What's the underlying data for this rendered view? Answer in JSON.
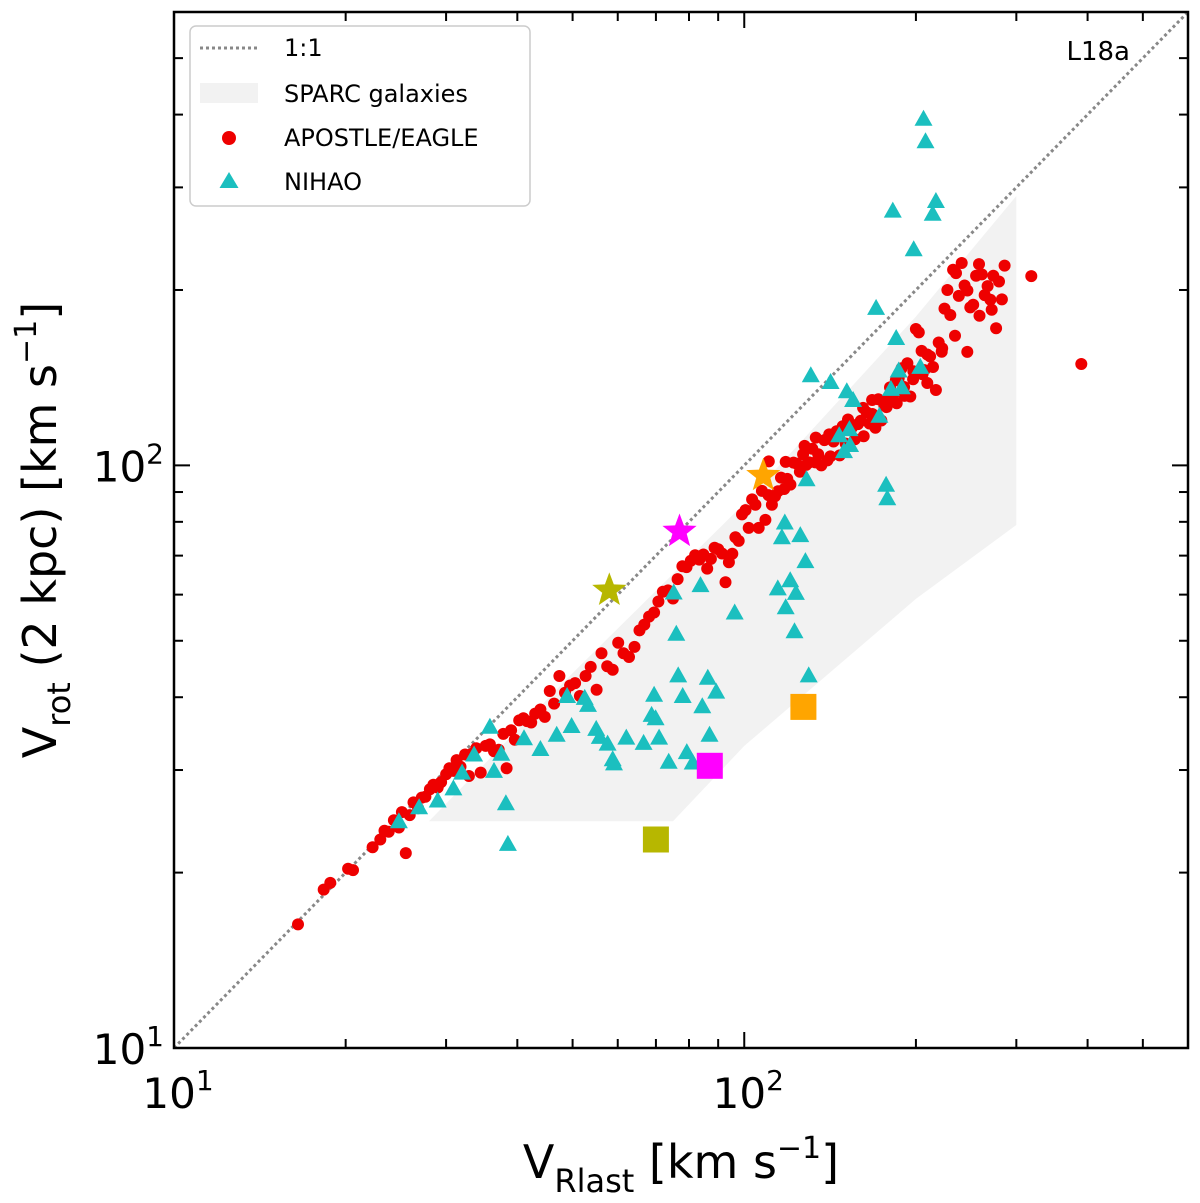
{
  "chart_data": {
    "type": "scatter",
    "xscale": "log",
    "yscale": "log",
    "xlim": [
      10,
      600
    ],
    "ylim": [
      10,
      600
    ],
    "grid": false,
    "legend_placement": "top-left",
    "annotation": "L18a",
    "xlabel": {
      "main": "V",
      "sub": "Rlast",
      "unit_pre": " [km s",
      "unit_sup": "−1",
      "unit_post": "]"
    },
    "ylabel": {
      "main": "V",
      "sub": "rot",
      "unit_pre": " (2 kpc) [km s",
      "unit_sup": "−1",
      "unit_post": "]"
    },
    "xticks": [
      {
        "value": 10,
        "base": "10",
        "exp": "1"
      },
      {
        "value": 100,
        "base": "10",
        "exp": "2"
      }
    ],
    "yticks": [
      {
        "value": 10,
        "base": "10",
        "exp": "1"
      },
      {
        "value": 100,
        "base": "10",
        "exp": "2"
      }
    ],
    "legend": [
      {
        "label": "1:1",
        "kind": "line"
      },
      {
        "label": "SPARC galaxies",
        "kind": "band"
      },
      {
        "label": "APOSTLE/EAGLE",
        "kind": "circle"
      },
      {
        "label": "NIHAO",
        "kind": "triangle"
      }
    ],
    "colors": {
      "one_to_one": "#888888",
      "sparc_band": "#f2f2f2",
      "apostle": "#ee0000",
      "nihao": "#1bbfbf",
      "olive": "#b7b700",
      "magenta": "#ff00ff",
      "orange": "#ffa500"
    },
    "one_to_one_line": [
      [
        10,
        10
      ],
      [
        600,
        600
      ]
    ],
    "sparc_band": [
      [
        28,
        24.5
      ],
      [
        50,
        44
      ],
      [
        100,
        86
      ],
      [
        200,
        180
      ],
      [
        300,
        290
      ],
      [
        300,
        79
      ],
      [
        200,
        59
      ],
      [
        100,
        33
      ],
      [
        75,
        24.5
      ]
    ],
    "series": [
      {
        "name": "APOSTLE/EAGLE",
        "marker": "circle",
        "points": [
          [
            16.5,
            16.3
          ],
          [
            18.3,
            18.7
          ],
          [
            18.8,
            19.2
          ],
          [
            20.2,
            20.3
          ],
          [
            20.6,
            20.2
          ],
          [
            22.3,
            22.1
          ],
          [
            23.0,
            22.8
          ],
          [
            23.4,
            23.6
          ],
          [
            23.8,
            23.5
          ],
          [
            24.3,
            24.6
          ],
          [
            24.8,
            23.9
          ],
          [
            25.1,
            25.4
          ],
          [
            25.5,
            21.6
          ],
          [
            25.9,
            25.1
          ],
          [
            26.3,
            26.4
          ],
          [
            26.8,
            25.8
          ],
          [
            27.2,
            26.9
          ],
          [
            27.6,
            27.0
          ],
          [
            28.1,
            27.8
          ],
          [
            28.5,
            28.3
          ],
          [
            29.0,
            28.0
          ],
          [
            29.4,
            28.6
          ],
          [
            30.0,
            29.5
          ],
          [
            30.4,
            30.2
          ],
          [
            30.9,
            29.9
          ],
          [
            31.3,
            31.2
          ],
          [
            31.8,
            30.4
          ],
          [
            32.4,
            31.9
          ],
          [
            32.9,
            29.3
          ],
          [
            33.3,
            32.0
          ],
          [
            33.9,
            32.7
          ],
          [
            34.5,
            29.7
          ],
          [
            35.2,
            33.0
          ],
          [
            35.8,
            33.2
          ],
          [
            36.4,
            32.3
          ],
          [
            37.1,
            32.5
          ],
          [
            37.8,
            34.6
          ],
          [
            38.3,
            30.2
          ],
          [
            39.0,
            35.1
          ],
          [
            39.6,
            33.8
          ],
          [
            40.3,
            36.5
          ],
          [
            41.0,
            36.8
          ],
          [
            41.6,
            36.4
          ],
          [
            42.3,
            36.2
          ],
          [
            43.0,
            37.5
          ],
          [
            43.9,
            38.1
          ],
          [
            44.7,
            37.0
          ],
          [
            45.6,
            41.0
          ],
          [
            46.4,
            39.0
          ],
          [
            47.4,
            43.5
          ],
          [
            48.5,
            40.7
          ],
          [
            49.5,
            41.9
          ],
          [
            50.5,
            42.3
          ],
          [
            51.5,
            40.2
          ],
          [
            52.7,
            43.5
          ],
          [
            53.8,
            45.1
          ],
          [
            55.1,
            41.2
          ],
          [
            56.2,
            47.6
          ],
          [
            57.5,
            45.2
          ],
          [
            58.8,
            44.6
          ],
          [
            60.1,
            49.6
          ],
          [
            61.4,
            47.6
          ],
          [
            62.8,
            46.9
          ],
          [
            64.2,
            48.8
          ],
          [
            65.5,
            52.1
          ],
          [
            66.8,
            53.3
          ],
          [
            68.1,
            55.0
          ],
          [
            69.5,
            55.9
          ],
          [
            70.7,
            58.4
          ],
          [
            72.0,
            60.7
          ],
          [
            73.5,
            61.0
          ],
          [
            75.0,
            59.1
          ],
          [
            76.4,
            63.8
          ],
          [
            77.9,
            67.1
          ],
          [
            79.2,
            66.9
          ],
          [
            80.6,
            68.6
          ],
          [
            82.0,
            70.1
          ],
          [
            83.4,
            68.9
          ],
          [
            84.8,
            70.3
          ],
          [
            86.1,
            66.5
          ],
          [
            87.4,
            69.1
          ],
          [
            88.7,
            72.2
          ],
          [
            90.0,
            71.8
          ],
          [
            91.4,
            70.6
          ],
          [
            92.7,
            63.0
          ],
          [
            94.0,
            68.2
          ],
          [
            95.3,
            70.5
          ],
          [
            96.5,
            75.3
          ],
          [
            97.8,
            74.2
          ],
          [
            99.1,
            82.4
          ],
          [
            100.5,
            83.8
          ],
          [
            101.8,
            78.1
          ],
          [
            103.2,
            87.4
          ],
          [
            104.6,
            85.6
          ],
          [
            106.0,
            78.1
          ],
          [
            107.4,
            90.4
          ],
          [
            108.9,
            80.6
          ],
          [
            110.3,
            88.9
          ],
          [
            111.8,
            85.6
          ],
          [
            113.2,
            88.5
          ],
          [
            114.6,
            90.3
          ],
          [
            116.0,
            95.3
          ],
          [
            117.5,
            91.1
          ],
          [
            119.0,
            94.8
          ],
          [
            120.5,
            92.7
          ],
          [
            122.0,
            101.1
          ],
          [
            123.6,
            100.7
          ],
          [
            125.2,
            97.5
          ],
          [
            126.8,
            104.5
          ],
          [
            128.4,
            100.2
          ],
          [
            130.0,
            101.2
          ],
          [
            131.6,
            106.8
          ],
          [
            133.2,
            101.2
          ],
          [
            134.8,
            104.5
          ],
          [
            136.5,
            100.0
          ],
          [
            138.2,
            110.5
          ],
          [
            139.9,
            102.0
          ],
          [
            141.6,
            103.6
          ],
          [
            143.4,
            109.9
          ],
          [
            145.2,
            114.4
          ],
          [
            147.0,
            104.0
          ],
          [
            148.8,
            116.7
          ],
          [
            150.6,
            109.0
          ],
          [
            152.5,
            116.6
          ],
          [
            154.4,
            116.0
          ],
          [
            156.3,
            110.9
          ],
          [
            158.2,
            117.7
          ],
          [
            160.1,
            119.3
          ],
          [
            162.0,
            112.2
          ],
          [
            163.9,
            123.4
          ],
          [
            165.8,
            118.0
          ],
          [
            167.8,
            122.5
          ],
          [
            169.8,
            116.0
          ],
          [
            171.8,
            129.9
          ],
          [
            173.9,
            119.4
          ],
          [
            176.0,
            126.7
          ],
          [
            178.0,
            129.8
          ],
          [
            180.1,
            136.1
          ],
          [
            182.2,
            131.1
          ],
          [
            184.4,
            139.9
          ],
          [
            186.6,
            141.0
          ],
          [
            188.8,
            146.8
          ],
          [
            191.0,
            131.6
          ],
          [
            193.2,
            149.7
          ],
          [
            195.5,
            131.3
          ],
          [
            197.7,
            140.5
          ],
          [
            200.0,
            171.4
          ],
          [
            202.3,
            169.1
          ],
          [
            204.6,
            157.2
          ],
          [
            207.0,
            145.7
          ],
          [
            209.4,
            155.0
          ],
          [
            211.8,
            153.8
          ],
          [
            214.3,
            147.5
          ],
          [
            216.8,
            134.7
          ],
          [
            219.3,
            162.5
          ],
          [
            221.9,
            156.7
          ],
          [
            224.5,
            185.8
          ],
          [
            227.1,
            200.0
          ],
          [
            229.8,
            181.2
          ],
          [
            232.4,
            216.7
          ],
          [
            235.1,
            213.8
          ],
          [
            237.8,
            195.4
          ],
          [
            240.6,
            222.5
          ],
          [
            243.4,
            203.6
          ],
          [
            246.2,
            199.6
          ],
          [
            249.1,
            186.7
          ],
          [
            252.0,
            188.6
          ],
          [
            255.0,
            211.5
          ],
          [
            258.0,
            221.5
          ],
          [
            261.0,
            212.7
          ],
          [
            264.0,
            196.0
          ],
          [
            267.1,
            203.1
          ],
          [
            270.2,
            192.5
          ],
          [
            273.3,
            211.6
          ],
          [
            276.5,
            171.9
          ],
          [
            279.7,
            206.8
          ],
          [
            283.0,
            192.7
          ],
          [
            318.7,
            211.3
          ],
          [
            390.0,
            149.3
          ],
          [
            108.0,
            96.5
          ],
          [
            110.4,
            101.6
          ],
          [
            118.2,
            101.4
          ],
          [
            127.6,
            108.0
          ],
          [
            133.5,
            111.6
          ],
          [
            140.9,
            113.0
          ],
          [
            146.8,
            113.7
          ],
          [
            152.0,
            119.9
          ],
          [
            161.6,
            125.5
          ],
          [
            167.6,
            129.5
          ],
          [
            177.7,
            125.9
          ],
          [
            185.1,
            127.8
          ],
          [
            190.7,
            136.3
          ],
          [
            198.0,
            145.1
          ],
          [
            205.4,
            143.4
          ],
          [
            209.4,
            138.5
          ],
          [
            222.4,
            158.8
          ],
          [
            234.2,
            166.9
          ],
          [
            246.1,
            156.6
          ],
          [
            258.5,
            180.7
          ],
          [
            271.6,
            185.0
          ],
          [
            286.1,
            220.2
          ]
        ]
      },
      {
        "name": "NIHAO",
        "marker": "triangle",
        "points": [
          [
            24.8,
            24.5
          ],
          [
            26.9,
            25.9
          ],
          [
            29.0,
            26.6
          ],
          [
            30.9,
            27.9
          ],
          [
            32.0,
            29.7
          ],
          [
            33.6,
            31.9
          ],
          [
            35.8,
            35.6
          ],
          [
            36.4,
            29.9
          ],
          [
            37.5,
            32.0
          ],
          [
            38.2,
            26.3
          ],
          [
            38.5,
            22.4
          ],
          [
            41.1,
            34.0
          ],
          [
            43.9,
            32.6
          ],
          [
            46.9,
            34.5
          ],
          [
            48.9,
            40.2
          ],
          [
            49.8,
            35.7
          ],
          [
            52.5,
            39.9
          ],
          [
            53.2,
            38.8
          ],
          [
            55.0,
            35.3
          ],
          [
            55.8,
            34.2
          ],
          [
            57.6,
            33.3
          ],
          [
            58.8,
            31.3
          ],
          [
            59.1,
            30.8
          ],
          [
            62.1,
            34.1
          ],
          [
            66.6,
            33.4
          ],
          [
            68.8,
            37.3
          ],
          [
            69.5,
            40.4
          ],
          [
            69.9,
            36.8
          ],
          [
            70.9,
            34.1
          ],
          [
            73.7,
            31.0
          ],
          [
            75.2,
            60.5
          ],
          [
            76.0,
            51.4
          ],
          [
            76.6,
            43.6
          ],
          [
            78.0,
            40.2
          ],
          [
            79.3,
            32.2
          ],
          [
            81.2,
            30.9
          ],
          [
            83.8,
            62.3
          ],
          [
            84.4,
            38.6
          ],
          [
            86.3,
            43.2
          ],
          [
            86.9,
            34.5
          ],
          [
            89.3,
            40.9
          ],
          [
            96.2,
            55.9
          ],
          [
            114.5,
            61.5
          ],
          [
            116.4,
            75.3
          ],
          [
            117.8,
            79.8
          ],
          [
            118.2,
            57.1
          ],
          [
            120.4,
            63.5
          ],
          [
            122.5,
            51.9
          ],
          [
            123.2,
            60.4
          ],
          [
            125.4,
            75.9
          ],
          [
            128.0,
            68.5
          ],
          [
            128.6,
            94.7
          ],
          [
            129.7,
            43.6
          ],
          [
            130.8,
            142.8
          ],
          [
            141.7,
            139.0
          ],
          [
            146.7,
            112.6
          ],
          [
            149.6,
            105.8
          ],
          [
            151.3,
            134.0
          ],
          [
            152.9,
            115.4
          ],
          [
            153.3,
            108.4
          ],
          [
            155.2,
            129.5
          ],
          [
            170.3,
            186.3
          ],
          [
            172.6,
            121.7
          ],
          [
            177.3,
            92.6
          ],
          [
            178.2,
            87.8
          ],
          [
            180.8,
            135.3
          ],
          [
            182.2,
            273.7
          ],
          [
            184.7,
            165.4
          ],
          [
            186.6,
            145.5
          ],
          [
            188.9,
            136.2
          ],
          [
            198.2,
            235.0
          ],
          [
            203.6,
            147.6
          ],
          [
            206.2,
            393.4
          ],
          [
            207.9,
            360.0
          ],
          [
            214.0,
            270.4
          ],
          [
            216.8,
            284.3
          ]
        ]
      },
      {
        "name": "highlighted",
        "marker": "special",
        "points": [
          {
            "x": 58,
            "y": 61,
            "shape": "star",
            "color": "olive"
          },
          {
            "x": 70,
            "y": 22.8,
            "shape": "square",
            "color": "olive"
          },
          {
            "x": 77,
            "y": 77,
            "shape": "star",
            "color": "magenta"
          },
          {
            "x": 87,
            "y": 30.5,
            "shape": "square",
            "color": "magenta"
          },
          {
            "x": 108,
            "y": 96,
            "shape": "star",
            "color": "orange"
          },
          {
            "x": 127,
            "y": 38.5,
            "shape": "square",
            "color": "orange"
          }
        ]
      }
    ]
  }
}
